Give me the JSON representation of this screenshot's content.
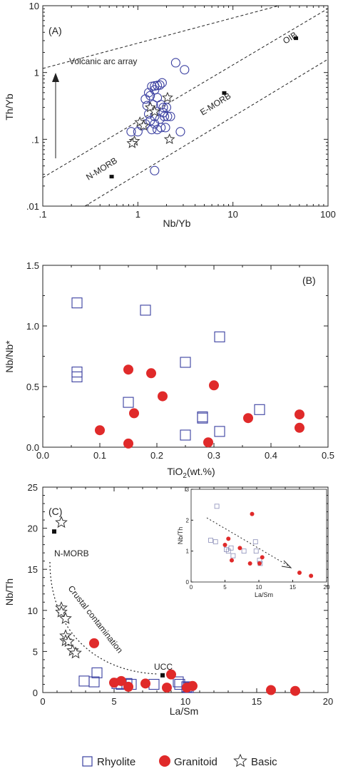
{
  "colors": {
    "rhyolite": "#3a3fa0",
    "granitoid": "#e02a2a",
    "basic": "#333333",
    "axis": "#222222"
  },
  "legend": [
    {
      "marker": "square",
      "label": "Rhyolite"
    },
    {
      "marker": "circle",
      "label": "Granitoid"
    },
    {
      "marker": "star",
      "label": "Basic"
    }
  ],
  "chart_data": [
    {
      "panel": "(A)",
      "type": "scatter",
      "xlabel": "Nb/Yb",
      "ylabel": "Th/Yb",
      "xscale": "log",
      "yscale": "log",
      "xlim": [
        0.1,
        100
      ],
      "ylim": [
        0.01,
        10
      ],
      "xtick_labels": [
        ".1",
        "1",
        "10",
        "100"
      ],
      "ytick_labels": [
        ".01",
        ".1",
        "1",
        "10"
      ],
      "annotations": {
        "arc_array": "Volcanic arc array",
        "nmorb": "N-MORB",
        "emorb": "E-MORB",
        "oib": "OIB"
      },
      "references": [
        {
          "name": "N-MORB",
          "x": 0.53,
          "y": 0.028
        },
        {
          "name": "E-MORB",
          "x": 8.1,
          "y": 0.5
        },
        {
          "name": "OIB",
          "x": 46,
          "y": 3.3
        }
      ],
      "series": [
        {
          "name": "Rhyolite",
          "marker": "circle-open",
          "points": [
            [
              2.5,
              1.4
            ],
            [
              3.1,
              1.1
            ],
            [
              1.4,
              0.62
            ],
            [
              1.5,
              0.63
            ],
            [
              1.6,
              0.64
            ],
            [
              1.7,
              0.65
            ],
            [
              1.8,
              0.7
            ],
            [
              1.5,
              0.55
            ],
            [
              1.3,
              0.5
            ],
            [
              1.35,
              0.45
            ],
            [
              1.2,
              0.4
            ],
            [
              1.6,
              0.42
            ],
            [
              1.25,
              0.32
            ],
            [
              1.45,
              0.33
            ],
            [
              1.75,
              0.33
            ],
            [
              1.85,
              0.3
            ],
            [
              2.0,
              0.3
            ],
            [
              1.85,
              0.25
            ],
            [
              1.9,
              0.22
            ],
            [
              2.05,
              0.22
            ],
            [
              2.2,
              0.22
            ],
            [
              1.3,
              0.24
            ],
            [
              1.5,
              0.22
            ],
            [
              1.7,
              0.2
            ],
            [
              1.35,
              0.19
            ],
            [
              1.5,
              0.17
            ],
            [
              1.2,
              0.17
            ],
            [
              1.1,
              0.16
            ],
            [
              1.4,
              0.14
            ],
            [
              1.6,
              0.14
            ],
            [
              1.75,
              0.15
            ],
            [
              1.95,
              0.15
            ],
            [
              0.85,
              0.13
            ],
            [
              2.8,
              0.13
            ],
            [
              1.0,
              0.13
            ],
            [
              1.5,
              0.034
            ]
          ]
        },
        {
          "name": "Basic",
          "marker": "star",
          "points": [
            [
              2.05,
              0.42
            ],
            [
              1.35,
              0.3
            ],
            [
              1.5,
              0.26
            ],
            [
              1.05,
              0.18
            ],
            [
              1.15,
              0.16
            ],
            [
              2.15,
              0.1
            ],
            [
              0.92,
              0.094
            ],
            [
              0.87,
              0.087
            ]
          ]
        }
      ]
    },
    {
      "panel": "(B)",
      "type": "scatter",
      "xlabel": "TiO2(wt.%)",
      "ylabel": "Nb/Nb*",
      "xlim": [
        0,
        0.5
      ],
      "ylim": [
        0,
        1.5
      ],
      "xtick_labels": [
        "0.0",
        "0.1",
        "0.2",
        "0.3",
        "0.4",
        "0.5"
      ],
      "ytick_labels": [
        "0.0",
        "0.5",
        "1.0",
        "1.5"
      ],
      "series": [
        {
          "name": "Rhyolite",
          "marker": "square-open",
          "points": [
            [
              0.06,
              1.19
            ],
            [
              0.18,
              1.13
            ],
            [
              0.31,
              0.91
            ],
            [
              0.25,
              0.7
            ],
            [
              0.06,
              0.62
            ],
            [
              0.06,
              0.58
            ],
            [
              0.15,
              0.37
            ],
            [
              0.38,
              0.31
            ],
            [
              0.28,
              0.25
            ],
            [
              0.28,
              0.24
            ],
            [
              0.31,
              0.13
            ],
            [
              0.25,
              0.1
            ]
          ]
        },
        {
          "name": "Granitoid",
          "marker": "circle-filled",
          "points": [
            [
              0.15,
              0.64
            ],
            [
              0.19,
              0.61
            ],
            [
              0.3,
              0.51
            ],
            [
              0.21,
              0.42
            ],
            [
              0.16,
              0.28
            ],
            [
              0.45,
              0.27
            ],
            [
              0.36,
              0.24
            ],
            [
              0.45,
              0.16
            ],
            [
              0.1,
              0.14
            ],
            [
              0.15,
              0.03
            ],
            [
              0.29,
              0.04
            ]
          ]
        }
      ]
    },
    {
      "panel": "(C)",
      "type": "scatter",
      "xlabel": "La/Sm",
      "ylabel": "Nb/Th",
      "xlim": [
        0,
        20
      ],
      "ylim": [
        0,
        25
      ],
      "xtick_labels": [
        "0",
        "5",
        "10",
        "15",
        "20"
      ],
      "ytick_labels": [
        "0",
        "5",
        "10",
        "15",
        "20",
        "25"
      ],
      "annotations": {
        "nmorb": "N-MORB",
        "ucc": "UCC",
        "trend": "Crustal contamination"
      },
      "references": [
        {
          "name": "N-MORB",
          "x": 0.8,
          "y": 19.6
        },
        {
          "name": "UCC",
          "x": 8.4,
          "y": 2.1
        }
      ],
      "series": [
        {
          "name": "Rhyolite",
          "marker": "square-open",
          "points": [
            [
              3.8,
              2.4
            ],
            [
              2.9,
              1.4
            ],
            [
              3.6,
              1.3
            ],
            [
              5.2,
              1.1
            ],
            [
              5.5,
              1.0
            ],
            [
              5.9,
              1.1
            ],
            [
              6.2,
              1.0
            ],
            [
              7.8,
              1.0
            ],
            [
              9.5,
              1.3
            ],
            [
              9.6,
              1.0
            ],
            [
              10.1,
              0.7
            ],
            [
              10.2,
              0.6
            ]
          ]
        },
        {
          "name": "Granitoid",
          "marker": "circle-filled",
          "points": [
            [
              3.6,
              6.0
            ],
            [
              5.0,
              1.2
            ],
            [
              5.5,
              1.4
            ],
            [
              6.0,
              0.7
            ],
            [
              7.2,
              1.1
            ],
            [
              9.0,
              2.2
            ],
            [
              8.7,
              0.6
            ],
            [
              10.1,
              0.6
            ],
            [
              10.5,
              0.8
            ],
            [
              16.0,
              0.3
            ],
            [
              17.7,
              0.2
            ]
          ]
        },
        {
          "name": "Basic",
          "marker": "star",
          "points": [
            [
              1.3,
              20.7
            ],
            [
              1.3,
              10.3
            ],
            [
              1.3,
              9.8
            ],
            [
              1.6,
              9.0
            ],
            [
              1.6,
              6.9
            ],
            [
              1.6,
              6.3
            ],
            [
              1.8,
              6.2
            ],
            [
              2.1,
              5.1
            ],
            [
              2.3,
              4.8
            ]
          ]
        }
      ],
      "inset": {
        "xlabel": "La/Sm",
        "ylabel": "Nb/Th",
        "xlim": [
          0,
          20
        ],
        "ylim": [
          0,
          3
        ],
        "xtick_labels": [
          "0",
          "5",
          "10",
          "15",
          "20"
        ],
        "ytick_labels": [
          "0",
          "1",
          "2",
          "3"
        ],
        "series": [
          {
            "name": "Rhyolite",
            "marker": "square-open",
            "points": [
              [
                3.8,
                2.45
              ],
              [
                2.9,
                1.35
              ],
              [
                3.6,
                1.3
              ],
              [
                5.2,
                1.05
              ],
              [
                5.5,
                1.0
              ],
              [
                5.9,
                1.1
              ],
              [
                6.2,
                0.85
              ],
              [
                7.8,
                1.0
              ],
              [
                9.5,
                1.3
              ],
              [
                9.6,
                1.0
              ],
              [
                10.1,
                0.7
              ],
              [
                10.2,
                0.6
              ]
            ]
          },
          {
            "name": "Granitoid",
            "marker": "circle-filled",
            "points": [
              [
                5.5,
                1.4
              ],
              [
                5.0,
                1.2
              ],
              [
                6.0,
                0.7
              ],
              [
                7.2,
                1.1
              ],
              [
                9.0,
                2.2
              ],
              [
                8.7,
                0.6
              ],
              [
                10.1,
                0.6
              ],
              [
                10.5,
                0.8
              ],
              [
                16.0,
                0.3
              ],
              [
                17.7,
                0.2
              ]
            ]
          }
        ]
      }
    }
  ]
}
